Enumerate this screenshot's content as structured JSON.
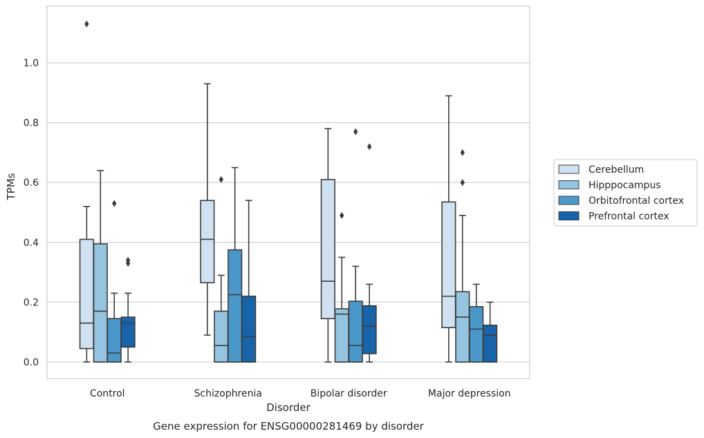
{
  "chart_data": {
    "type": "box",
    "caption": "Gene expression for ENSG00000281469 by disorder",
    "xlabel": "Disorder",
    "ylabel": "TPMs",
    "ylim": [
      -0.055,
      1.19
    ],
    "yticks": [
      0.0,
      0.2,
      0.4,
      0.6,
      0.8,
      1.0
    ],
    "ytick_labels": [
      "0.0",
      "0.2",
      "0.4",
      "0.6",
      "0.8",
      "1.0"
    ],
    "grid": "horizontal",
    "legend_position": "right",
    "categories": [
      "Control",
      "Schizophrenia",
      "Bipolar disorder",
      "Major depression"
    ],
    "series": [
      {
        "name": "Cerebellum",
        "color": "#d0e1f2",
        "boxes": [
          {
            "category": "Control",
            "whisker_low": 0.0,
            "q1": 0.045,
            "median": 0.13,
            "q3": 0.41,
            "whisker_high": 0.52,
            "outliers": [
              1.13
            ]
          },
          {
            "category": "Schizophrenia",
            "whisker_low": 0.09,
            "q1": 0.265,
            "median": 0.41,
            "q3": 0.54,
            "whisker_high": 0.93,
            "outliers": []
          },
          {
            "category": "Bipolar disorder",
            "whisker_low": 0.0,
            "q1": 0.145,
            "median": 0.27,
            "q3": 0.61,
            "whisker_high": 0.78,
            "outliers": []
          },
          {
            "category": "Major depression",
            "whisker_low": 0.0,
            "q1": 0.115,
            "median": 0.22,
            "q3": 0.535,
            "whisker_high": 0.89,
            "outliers": []
          }
        ]
      },
      {
        "name": "Hipppocampus",
        "color": "#94c4df",
        "boxes": [
          {
            "category": "Control",
            "whisker_low": 0.0,
            "q1": 0.0,
            "median": 0.17,
            "q3": 0.395,
            "whisker_high": 0.64,
            "outliers": []
          },
          {
            "category": "Schizophrenia",
            "whisker_low": 0.0,
            "q1": 0.0,
            "median": 0.055,
            "q3": 0.17,
            "whisker_high": 0.29,
            "outliers": [
              0.61
            ]
          },
          {
            "category": "Bipolar disorder",
            "whisker_low": 0.0,
            "q1": 0.0,
            "median": 0.16,
            "q3": 0.178,
            "whisker_high": 0.35,
            "outliers": [
              0.49
            ]
          },
          {
            "category": "Major depression",
            "whisker_low": 0.0,
            "q1": 0.0,
            "median": 0.15,
            "q3": 0.235,
            "whisker_high": 0.49,
            "outliers": [
              0.6,
              0.7
            ]
          }
        ]
      },
      {
        "name": "Orbitofrontal cortex",
        "color": "#4a98c9",
        "boxes": [
          {
            "category": "Control",
            "whisker_low": 0.0,
            "q1": 0.0,
            "median": 0.03,
            "q3": 0.145,
            "whisker_high": 0.23,
            "outliers": [
              0.53
            ]
          },
          {
            "category": "Schizophrenia",
            "whisker_low": 0.0,
            "q1": 0.0,
            "median": 0.225,
            "q3": 0.375,
            "whisker_high": 0.65,
            "outliers": []
          },
          {
            "category": "Bipolar disorder",
            "whisker_low": 0.0,
            "q1": 0.0,
            "median": 0.055,
            "q3": 0.203,
            "whisker_high": 0.32,
            "outliers": [
              0.77
            ]
          },
          {
            "category": "Major depression",
            "whisker_low": 0.0,
            "q1": 0.0,
            "median": 0.11,
            "q3": 0.185,
            "whisker_high": 0.26,
            "outliers": []
          }
        ]
      },
      {
        "name": "Prefrontal cortex",
        "color": "#1764ab",
        "boxes": [
          {
            "category": "Control",
            "whisker_low": 0.0,
            "q1": 0.05,
            "median": 0.13,
            "q3": 0.15,
            "whisker_high": 0.23,
            "outliers": [
              0.33,
              0.34
            ]
          },
          {
            "category": "Schizophrenia",
            "whisker_low": 0.0,
            "q1": 0.0,
            "median": 0.085,
            "q3": 0.22,
            "whisker_high": 0.54,
            "outliers": []
          },
          {
            "category": "Bipolar disorder",
            "whisker_low": 0.0,
            "q1": 0.028,
            "median": 0.12,
            "q3": 0.188,
            "whisker_high": 0.26,
            "outliers": [
              0.72
            ]
          },
          {
            "category": "Major depression",
            "whisker_low": 0.0,
            "q1": 0.0,
            "median": 0.09,
            "q3": 0.123,
            "whisker_high": 0.2,
            "outliers": []
          }
        ]
      }
    ]
  }
}
